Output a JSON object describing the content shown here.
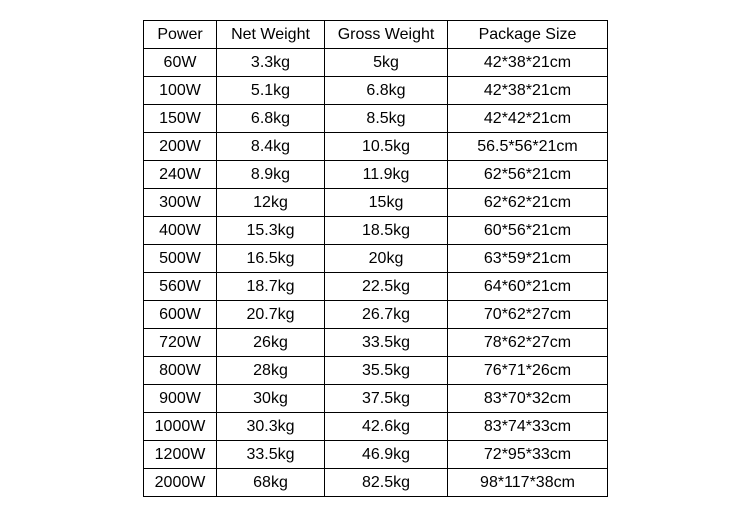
{
  "table": {
    "header": [
      "Power",
      "Net Weight",
      "Gross Weight",
      "Package Size"
    ],
    "rows": [
      [
        "60W",
        "3.3kg",
        "5kg",
        "42*38*21cm"
      ],
      [
        "100W",
        "5.1kg",
        "6.8kg",
        "42*38*21cm"
      ],
      [
        "150W",
        "6.8kg",
        "8.5kg",
        "42*42*21cm"
      ],
      [
        "200W",
        "8.4kg",
        "10.5kg",
        "56.5*56*21cm"
      ],
      [
        "240W",
        "8.9kg",
        "11.9kg",
        "62*56*21cm"
      ],
      [
        "300W",
        "12kg",
        "15kg",
        "62*62*21cm"
      ],
      [
        "400W",
        "15.3kg",
        "18.5kg",
        "60*56*21cm"
      ],
      [
        "500W",
        "16.5kg",
        "20kg",
        "63*59*21cm"
      ],
      [
        "560W",
        "18.7kg",
        "22.5kg",
        "64*60*21cm"
      ],
      [
        "600W",
        "20.7kg",
        "26.7kg",
        "70*62*27cm"
      ],
      [
        "720W",
        "26kg",
        "33.5kg",
        "78*62*27cm"
      ],
      [
        "800W",
        "28kg",
        "35.5kg",
        "76*71*26cm"
      ],
      [
        "900W",
        "30kg",
        "37.5kg",
        "83*70*32cm"
      ],
      [
        "1000W",
        "30.3kg",
        "42.6kg",
        "83*74*33cm"
      ],
      [
        "1200W",
        "33.5kg",
        "46.9kg",
        "72*95*33cm"
      ],
      [
        "2000W",
        "68kg",
        "82.5kg",
        "98*117*38cm"
      ]
    ]
  }
}
